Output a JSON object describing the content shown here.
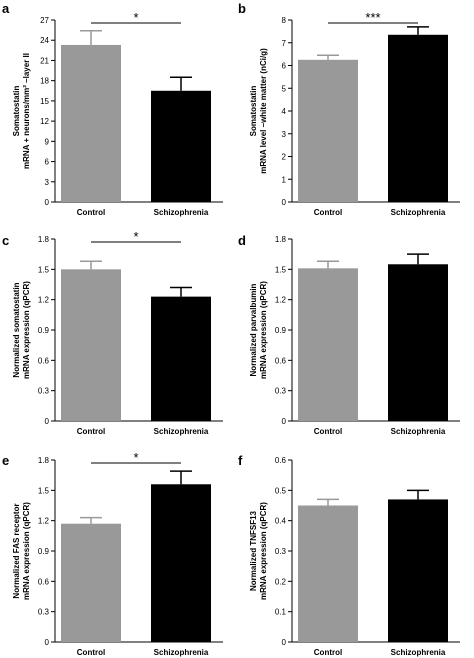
{
  "colors": {
    "control": "#999999",
    "schizophrenia": "#000000",
    "axis": "#000000"
  },
  "chart_data": [
    {
      "panel": "a",
      "type": "bar",
      "categories": [
        "Control",
        "Schizophrenia"
      ],
      "values": [
        23.3,
        16.5
      ],
      "errors": [
        2.1,
        2.0
      ],
      "ylabel_lines": [
        "Somatostatin",
        "mRNA + neurons/mm² –layer II"
      ],
      "ylim": [
        0,
        27
      ],
      "yticks": [
        0,
        3,
        6,
        9,
        12,
        15,
        18,
        21,
        24,
        27
      ],
      "ytick_labels": [
        "0",
        "3",
        "6",
        "9",
        "12",
        "15",
        "18",
        "21",
        "24",
        "27"
      ],
      "significance": "*"
    },
    {
      "panel": "b",
      "type": "bar",
      "categories": [
        "Control",
        "Schizophrenia"
      ],
      "values": [
        6.25,
        7.35
      ],
      "errors": [
        0.2,
        0.35
      ],
      "ylabel_lines": [
        "Somatostatin",
        "mRNA level –white matter (nCi/g)"
      ],
      "ylim": [
        0,
        8
      ],
      "yticks": [
        0,
        1,
        2,
        3,
        4,
        5,
        6,
        7,
        8
      ],
      "ytick_labels": [
        "0",
        "1",
        "2",
        "3",
        "4",
        "5",
        "6",
        "7",
        "8"
      ],
      "significance": "***"
    },
    {
      "panel": "c",
      "type": "bar",
      "categories": [
        "Control",
        "Schizophrenia"
      ],
      "values": [
        1.5,
        1.23
      ],
      "errors": [
        0.08,
        0.09
      ],
      "ylabel_lines": [
        "Normalized somatostatin",
        "mRNA expression (qPCR)"
      ],
      "ylim": [
        0,
        1.8
      ],
      "yticks": [
        0,
        0.3,
        0.6,
        0.9,
        1.2,
        1.5,
        1.8
      ],
      "ytick_labels": [
        "0",
        "0.3",
        "0.6",
        "0.9",
        "1.2",
        "1.5",
        "1.8"
      ],
      "significance": "*"
    },
    {
      "panel": "d",
      "type": "bar",
      "categories": [
        "Control",
        "Schizophrenia"
      ],
      "values": [
        1.51,
        1.55
      ],
      "errors": [
        0.07,
        0.1
      ],
      "ylabel_lines": [
        "Normalized parvalbumin",
        "mRNA expression (qPCR)"
      ],
      "ylim": [
        0,
        1.8
      ],
      "yticks": [
        0,
        0.3,
        0.6,
        0.9,
        1.2,
        1.5,
        1.8
      ],
      "ytick_labels": [
        "0",
        "0.3",
        "0.6",
        "0.9",
        "1.2",
        "1.5",
        "1.8"
      ],
      "significance": ""
    },
    {
      "panel": "e",
      "type": "bar",
      "categories": [
        "Control",
        "Schizophrenia"
      ],
      "values": [
        1.17,
        1.56
      ],
      "errors": [
        0.06,
        0.13
      ],
      "ylabel_lines": [
        "Normalized FAS receptor",
        "mRNA expression (qPCR)"
      ],
      "ylim": [
        0,
        1.8
      ],
      "yticks": [
        0,
        0.3,
        0.6,
        0.9,
        1.2,
        1.5,
        1.8
      ],
      "ytick_labels": [
        "0",
        "0.3",
        "0.6",
        "0.9",
        "1.2",
        "1.5",
        "1.8"
      ],
      "significance": "*"
    },
    {
      "panel": "f",
      "type": "bar",
      "categories": [
        "Control",
        "Schizophrenia"
      ],
      "values": [
        0.45,
        0.47
      ],
      "errors": [
        0.02,
        0.03
      ],
      "ylabel_lines": [
        "Normalized TNFSF13",
        "mRNA expression (qPCR)"
      ],
      "ylim": [
        0,
        0.6
      ],
      "yticks": [
        0,
        0.1,
        0.2,
        0.3,
        0.4,
        0.5,
        0.6
      ],
      "ytick_labels": [
        "0",
        "0.1",
        "0.2",
        "0.3",
        "0.4",
        "0.5",
        "0.6"
      ],
      "significance": ""
    }
  ]
}
